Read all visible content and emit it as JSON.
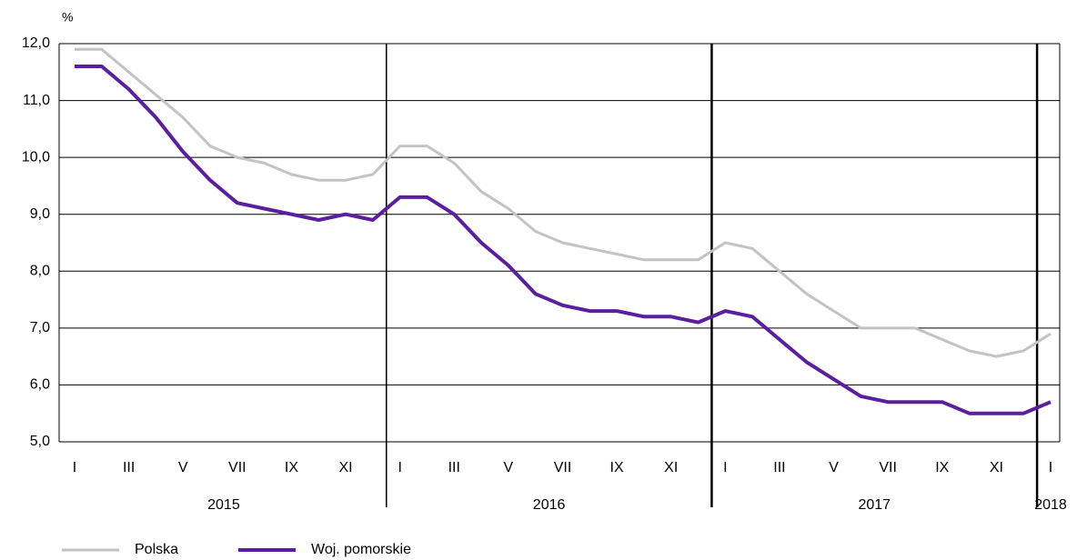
{
  "chart_data": {
    "type": "line",
    "y_label": "%",
    "categories": [
      "I",
      null,
      "III",
      null,
      "V",
      null,
      "VII",
      null,
      "IX",
      null,
      "XI",
      null,
      "I",
      null,
      "III",
      null,
      "V",
      null,
      "VII",
      null,
      "IX",
      null,
      "XI",
      null,
      "I",
      null,
      "III",
      null,
      "V",
      null,
      "VII",
      null,
      "IX",
      null,
      "XI",
      null,
      "I"
    ],
    "x_groups": [
      "2015",
      "2016",
      "2017",
      "2018"
    ],
    "series": [
      {
        "name": "Polska",
        "color": "#c3c3c3",
        "values": [
          11.9,
          11.9,
          11.5,
          11.1,
          10.7,
          10.2,
          10.0,
          9.9,
          9.7,
          9.6,
          9.6,
          9.7,
          10.2,
          10.2,
          9.9,
          9.4,
          9.1,
          8.7,
          8.5,
          8.4,
          8.3,
          8.2,
          8.2,
          8.2,
          8.5,
          8.4,
          8.0,
          7.6,
          7.3,
          7.0,
          7.0,
          7.0,
          6.8,
          6.6,
          6.5,
          6.6,
          6.9
        ]
      },
      {
        "name": "Woj. pomorskie",
        "color": "#5b1f9e",
        "values": [
          11.6,
          11.6,
          11.2,
          10.7,
          10.1,
          9.6,
          9.2,
          9.1,
          9.0,
          8.9,
          9.0,
          8.9,
          9.3,
          9.3,
          9.0,
          8.5,
          8.1,
          7.6,
          7.4,
          7.3,
          7.3,
          7.2,
          7.2,
          7.1,
          7.3,
          7.2,
          6.8,
          6.4,
          6.1,
          5.8,
          5.7,
          5.7,
          5.7,
          5.5,
          5.5,
          5.5,
          5.7
        ]
      }
    ],
    "ylim": [
      5,
      12
    ],
    "yticks": [
      {
        "value": 5,
        "label": "5,0"
      },
      {
        "value": 6,
        "label": "6,0"
      },
      {
        "value": 7,
        "label": "7,0"
      },
      {
        "value": 8,
        "label": "8,0"
      },
      {
        "value": 9,
        "label": "9,0"
      },
      {
        "value": 10,
        "label": "10,0"
      },
      {
        "value": 11,
        "label": "11,0"
      },
      {
        "value": 12,
        "label": "12,0"
      }
    ],
    "grid": true,
    "legend": "bottom-left"
  }
}
